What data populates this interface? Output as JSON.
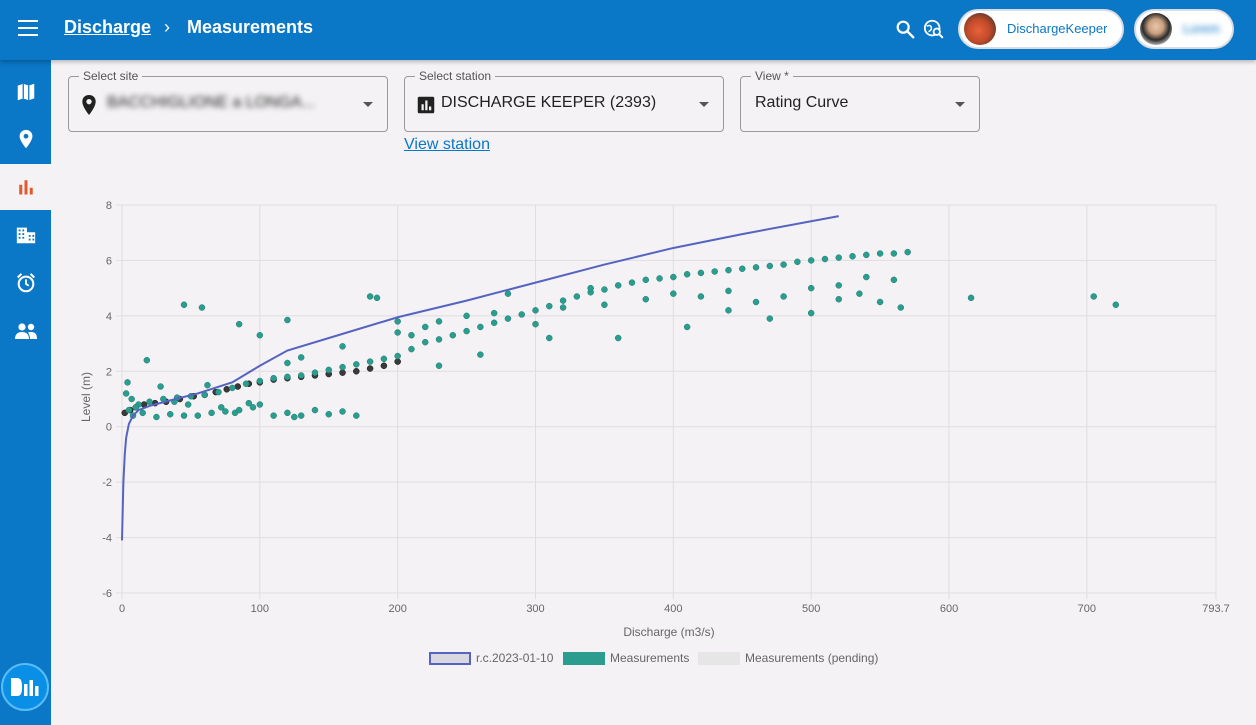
{
  "header": {
    "breadcrumb_parent": "Discharge",
    "breadcrumb_separator": "›",
    "breadcrumb_current": "Measurements",
    "org_label": "DischargeKeeper",
    "user_label": "Lorem"
  },
  "sidebar": {
    "items": [
      {
        "icon": "map-icon"
      },
      {
        "icon": "location-pin-icon"
      },
      {
        "icon": "bar-chart-icon",
        "active": true
      },
      {
        "icon": "building-icon"
      },
      {
        "icon": "alarm-clock-icon"
      },
      {
        "icon": "people-icon"
      }
    ],
    "logo_text": "DıI"
  },
  "fields": {
    "site": {
      "label": "Select site",
      "value": "BACCHIGLIONE a LONGA..."
    },
    "station": {
      "label": "Select station",
      "value": "DISCHARGE KEEPER (2393)"
    },
    "view": {
      "label": "View *",
      "value": "Rating Curve"
    }
  },
  "view_station_link": "View station",
  "colors": {
    "primary": "#0a77c7",
    "curve": "#5563c1",
    "measurements": "#2a9d8f",
    "pending": "#e6e6e6",
    "sidebar_active": "#e05a2b"
  },
  "chart_data": {
    "type": "scatter",
    "xlabel": "Discharge (m3/s)",
    "ylabel": "Level (m)",
    "xlim": [
      0,
      793.7
    ],
    "ylim": [
      -6,
      8
    ],
    "x_ticks": [
      "0",
      "100",
      "200",
      "300",
      "400",
      "500",
      "600",
      "700",
      "793.7"
    ],
    "y_ticks": [
      "8",
      "6",
      "4",
      "2",
      "0",
      "-2",
      "-4",
      "-6"
    ],
    "grid": true,
    "legend_position": "bottom",
    "series": [
      {
        "name": "r.c.2023-01-10",
        "type": "line",
        "x": [
          0,
          1,
          2,
          3,
          5,
          8,
          12,
          20,
          35,
          55,
          80,
          100,
          120,
          160,
          200,
          250,
          300,
          350,
          400,
          450,
          520
        ],
        "y": [
          -4.1,
          -2.0,
          -1.0,
          -0.4,
          0.1,
          0.4,
          0.6,
          0.75,
          0.95,
          1.2,
          1.6,
          2.2,
          2.75,
          3.35,
          3.95,
          4.55,
          5.2,
          5.85,
          6.45,
          6.95,
          7.6
        ]
      },
      {
        "name": "Measurements",
        "type": "scatter",
        "x": [
          5,
          12,
          20,
          30,
          40,
          50,
          60,
          70,
          80,
          90,
          100,
          110,
          120,
          130,
          140,
          150,
          160,
          170,
          180,
          190,
          200,
          210,
          220,
          230,
          240,
          250,
          260,
          270,
          280,
          290,
          300,
          310,
          320,
          330,
          340,
          350,
          360,
          370,
          380,
          390,
          400,
          410,
          420,
          430,
          440,
          450,
          460,
          470,
          480,
          490,
          500,
          510,
          520,
          530,
          540,
          550,
          560,
          570,
          3,
          8,
          15,
          25,
          35,
          45,
          55,
          65,
          75,
          85,
          95,
          100,
          110,
          120,
          125,
          130,
          140,
          150,
          160,
          170,
          120,
          130,
          160,
          200,
          210,
          220,
          230,
          250,
          270,
          300,
          320,
          350,
          380,
          400,
          420,
          440,
          460,
          480,
          500,
          520,
          540,
          560,
          45,
          58,
          85,
          100,
          120,
          180,
          185,
          200,
          230,
          260,
          280,
          310,
          340,
          360,
          410,
          440,
          470,
          500,
          520,
          535,
          550,
          565,
          616,
          705,
          721,
          4,
          7,
          10,
          18,
          28,
          38,
          48,
          62,
          72,
          82,
          92
        ],
        "y": [
          0.6,
          0.8,
          0.9,
          1.0,
          1.05,
          1.1,
          1.15,
          1.25,
          1.4,
          1.55,
          1.65,
          1.75,
          1.8,
          1.85,
          1.95,
          2.05,
          2.15,
          2.25,
          2.35,
          2.45,
          2.55,
          2.8,
          3.05,
          3.15,
          3.3,
          3.45,
          3.6,
          3.75,
          3.9,
          4.05,
          4.2,
          4.35,
          4.55,
          4.7,
          4.85,
          4.95,
          5.1,
          5.2,
          5.3,
          5.35,
          5.4,
          5.5,
          5.55,
          5.6,
          5.65,
          5.7,
          5.75,
          5.8,
          5.85,
          5.95,
          6.0,
          6.05,
          6.1,
          6.15,
          6.2,
          6.25,
          6.25,
          6.3,
          1.2,
          0.4,
          0.5,
          0.35,
          0.45,
          0.4,
          0.4,
          0.5,
          0.55,
          0.6,
          0.7,
          0.8,
          0.4,
          0.5,
          0.35,
          0.4,
          0.6,
          0.45,
          0.55,
          0.4,
          2.3,
          2.5,
          2.9,
          3.4,
          3.3,
          3.6,
          3.8,
          4.0,
          4.1,
          3.7,
          4.3,
          4.4,
          4.6,
          4.8,
          4.7,
          4.9,
          4.5,
          4.7,
          5.0,
          5.1,
          5.4,
          5.3,
          4.4,
          4.3,
          3.7,
          3.3,
          3.85,
          4.7,
          4.65,
          3.8,
          2.2,
          2.6,
          4.8,
          3.2,
          5.0,
          3.2,
          3.6,
          4.2,
          3.9,
          4.1,
          4.6,
          4.8,
          4.5,
          4.3,
          4.65,
          4.7,
          4.4,
          1.6,
          1.0,
          0.7,
          2.4,
          1.45,
          0.9,
          0.8,
          1.5,
          0.7,
          0.5,
          0.85
        ]
      },
      {
        "name": "Measurements (pending)",
        "type": "scatter",
        "x": [
          2,
          6,
          10,
          16,
          24,
          32,
          42,
          52,
          60,
          68,
          76,
          84,
          92,
          100,
          110,
          120,
          130,
          140,
          150,
          160,
          170,
          180,
          190,
          200
        ],
        "y": [
          0.5,
          0.6,
          0.7,
          0.8,
          0.85,
          0.9,
          1.0,
          1.1,
          1.15,
          1.25,
          1.35,
          1.45,
          1.55,
          1.6,
          1.7,
          1.75,
          1.8,
          1.85,
          1.9,
          1.95,
          2.0,
          2.1,
          2.2,
          2.35
        ]
      }
    ]
  }
}
